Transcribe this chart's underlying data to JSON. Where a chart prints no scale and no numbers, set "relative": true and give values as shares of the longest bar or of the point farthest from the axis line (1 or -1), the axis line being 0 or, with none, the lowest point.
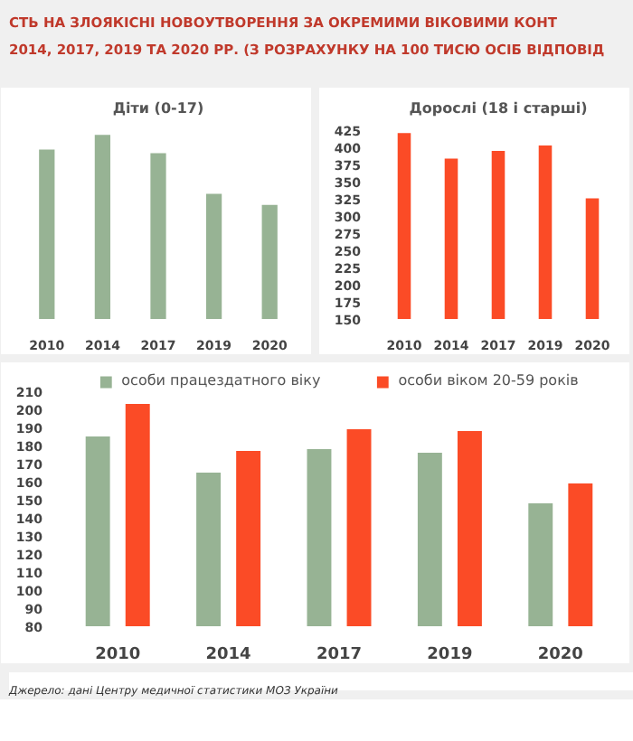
{
  "chart_data": [
    {
      "type": "bar",
      "title": "СТЬ НА ЗЛОЯКІСНІ НОВОУТВОРЕННЯ ЗА ОКРЕМИМИ ВІКОВИМИ КОНТ\n 2014, 2017, 2019 ТА 2020 РР. (З РОЗРАХУНКУ НА 100 ТИСЮ ОСІБ ВІДПОВІД",
      "subtitle": "Діти (0-17)",
      "relative": true,
      "categories": [
        "2010",
        "2014",
        "2017",
        "2019",
        "2020"
      ],
      "series": [
        {
          "color": "#97b394",
          "values": [
            0.92,
            1,
            0.9,
            0.68,
            0.62
          ]
        }
      ],
      "grid": false
    },
    {
      "type": "bar",
      "subtitle": "Дорослі (18 і старші)",
      "categories": [
        "2010",
        "2014",
        "2017",
        "2019",
        "2020"
      ],
      "series": [
        {
          "color": "#fb4b26",
          "values": [
            421,
            384,
            395,
            403,
            326
          ]
        }
      ],
      "ylim": [
        150,
        432
      ],
      "yticks": [
        150,
        175,
        200,
        225,
        250,
        275,
        300,
        325,
        350,
        375,
        400,
        425
      ],
      "grid": false
    },
    {
      "type": "bar",
      "categories": [
        "2010",
        "2014",
        "2017",
        "2019",
        "2020"
      ],
      "series": [
        {
          "name": "особи працездатного віку",
          "color": "#97b394",
          "values": [
            185,
            165,
            178,
            176,
            148
          ]
        },
        {
          "name": "особи віком 20-59 років",
          "color": "#fb4b26",
          "values": [
            203,
            177,
            189,
            188,
            159
          ]
        }
      ],
      "ylim": [
        80,
        222
      ],
      "yticks": [
        80,
        90,
        100,
        110,
        120,
        130,
        140,
        150,
        160,
        170,
        180,
        190,
        200,
        210
      ],
      "grid": false,
      "legend": "top",
      "annotations": [
        "Джерело: дані Центру медичної статистики МОЗ України"
      ]
    }
  ]
}
